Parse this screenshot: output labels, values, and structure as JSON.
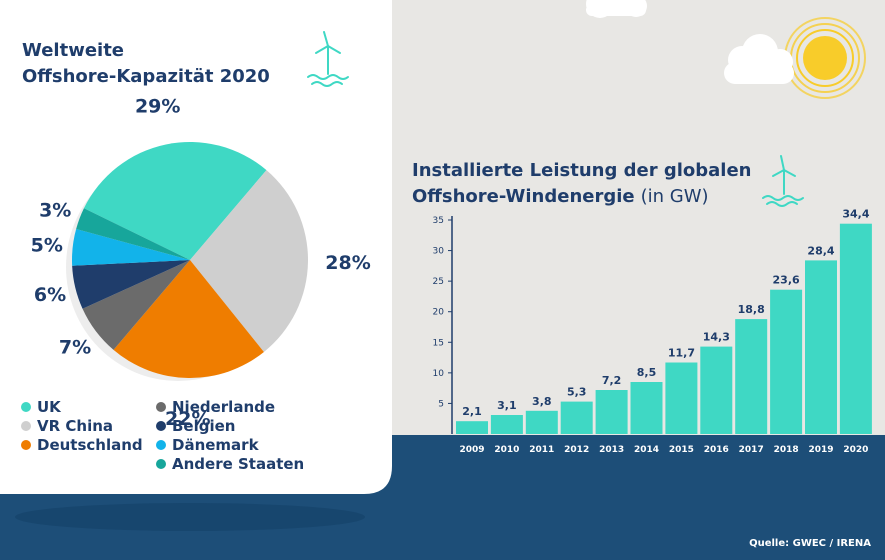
{
  "source": "Quelle: GWEC / IRENA",
  "colors": {
    "navy": "#1f3d6b",
    "sea": "#1d4e78",
    "sky": "#e8e7e4",
    "teal": "#3fd8c4",
    "sun": "#f8cc2a"
  },
  "icons": [
    "wind-turbine-icon",
    "wind-turbine-icon",
    "sun-icon",
    "cloud-icon",
    "cloud-icon"
  ],
  "chart_data": [
    {
      "type": "pie",
      "title_lines": [
        "Weltweite",
        "Offshore-Kapazität 2020"
      ],
      "legend_position": "bottom",
      "slices": [
        {
          "name": "UK",
          "value": 29,
          "label": "29%",
          "color": "#3fd8c4"
        },
        {
          "name": "VR China",
          "value": 28,
          "label": "28%",
          "color": "#cfcfcf"
        },
        {
          "name": "Deutschland",
          "value": 22,
          "label": "22%",
          "color": "#ef7d00"
        },
        {
          "name": "Niederlande",
          "value": 7,
          "label": "7%",
          "color": "#6b6b6b"
        },
        {
          "name": "Belgien",
          "value": 6,
          "label": "6%",
          "color": "#1f3d6b"
        },
        {
          "name": "Dänemark",
          "value": 5,
          "label": "5%",
          "color": "#12b3ea"
        },
        {
          "name": "Andere Staaten",
          "value": 3,
          "label": "3%",
          "color": "#17a69b"
        }
      ]
    },
    {
      "type": "bar",
      "title_lines": [
        "Installierte Leistung der globalen",
        "Offshore-Windenergie"
      ],
      "title_unit": "(in GW)",
      "categories": [
        "2009",
        "2010",
        "2011",
        "2012",
        "2013",
        "2014",
        "2015",
        "2016",
        "2017",
        "2018",
        "2019",
        "2020"
      ],
      "values": [
        2.1,
        3.1,
        3.8,
        5.3,
        7.2,
        8.5,
        11.7,
        14.3,
        18.8,
        23.6,
        28.4,
        34.4
      ],
      "value_labels": [
        "2,1",
        "3,1",
        "3,8",
        "5,3",
        "7,2",
        "8,5",
        "11,7",
        "14,3",
        "18,8",
        "23,6",
        "28,4",
        "34,4"
      ],
      "yticks": [
        5,
        10,
        15,
        20,
        25,
        30,
        35
      ],
      "ylim": [
        0,
        35
      ],
      "grid": false,
      "bar_color": "#3fd8c4"
    }
  ]
}
